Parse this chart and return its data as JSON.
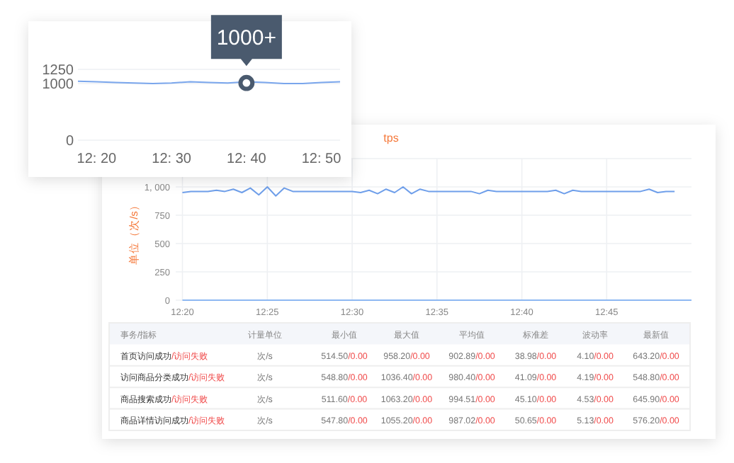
{
  "chart_data": [
    {
      "type": "line",
      "categories": [
        null,
        "12: 20",
        null,
        null,
        null,
        "12: 30",
        null,
        null,
        null,
        "12: 40",
        null,
        null,
        null,
        "12: 50",
        null
      ],
      "series": [
        {
          "color": "#7aa6ec",
          "values": [
            1040,
            1030,
            1020,
            1010,
            1000,
            1010,
            1030,
            1020,
            1010,
            1030,
            1020,
            1000,
            1000,
            1020,
            1030
          ]
        }
      ],
      "ylim": [
        0,
        1300
      ],
      "yticks": [
        0,
        1000,
        1250
      ],
      "grid": "y",
      "annotations": [
        {
          "text": "1000+",
          "x": "12: 40",
          "y": 1010
        }
      ]
    },
    {
      "type": "line",
      "title": "tps",
      "ylabel": "单位（次/s）",
      "series": [
        {
          "color": "#6f9fea",
          "x": [
            12.3333,
            12.3417,
            12.35,
            12.3583,
            12.3667,
            12.375,
            12.3833,
            12.3917,
            12.4,
            12.4083,
            12.4167,
            12.425,
            12.4333,
            12.4417,
            12.45,
            12.4583,
            12.4667,
            12.475,
            12.4833,
            12.4917,
            12.5,
            12.5083,
            12.5167,
            12.525,
            12.5333,
            12.5417,
            12.55,
            12.5583,
            12.5667,
            12.575,
            12.5833,
            12.5917,
            12.6,
            12.6083,
            12.6167,
            12.625,
            12.6333,
            12.6417,
            12.65,
            12.6583,
            12.6667,
            12.675,
            12.6833,
            12.6917,
            12.7,
            12.7083,
            12.7167,
            12.725,
            12.7333,
            12.7417,
            12.75,
            12.7583,
            12.7667,
            12.775,
            12.7833,
            12.7917,
            12.8,
            12.8083,
            12.8167
          ],
          "values": [
            950,
            960,
            960,
            960,
            970,
            960,
            980,
            950,
            990,
            930,
            1000,
            920,
            990,
            960,
            960,
            960,
            960,
            960,
            960,
            960,
            960,
            950,
            970,
            940,
            980,
            950,
            1000,
            940,
            980,
            960,
            960,
            960,
            960,
            960,
            960,
            940,
            970,
            960,
            960,
            960,
            960,
            960,
            960,
            960,
            970,
            940,
            970,
            960,
            960,
            960,
            960,
            960,
            960,
            960,
            960,
            980,
            950,
            960,
            960
          ]
        },
        {
          "color": "#8db8f2",
          "x": [
            12.3333,
            12.8333
          ],
          "values": [
            0,
            0
          ]
        }
      ],
      "xlim": [
        12.3267,
        12.8333
      ],
      "xticks": [
        {
          "value": 12.3333,
          "label": "12:20"
        },
        {
          "value": 12.4167,
          "label": "12:25"
        },
        {
          "value": 12.5,
          "label": "12:30"
        },
        {
          "value": 12.5833,
          "label": "12:35"
        },
        {
          "value": 12.6667,
          "label": "12:40"
        },
        {
          "value": 12.75,
          "label": "12:45"
        }
      ],
      "ylim": [
        0,
        1250
      ],
      "yticks": [
        0,
        250,
        500,
        750,
        {
          "value": 1000,
          "label": "1, 000"
        },
        {
          "value": 1250,
          "label": null
        }
      ],
      "grid": true
    },
    {
      "type": "other",
      "categories": [
        "事务/指标",
        "计量单位",
        "最小值",
        "最大值",
        "平均值",
        "标准差",
        "波动率",
        "最新值"
      ],
      "cell_labels": [
        [
          "首页访问成功/访问失败",
          "次/s",
          "514.50/0.00",
          "958.20/0.00",
          "902.89/0.00",
          "38.98/0.00",
          "4.10/0.00",
          "643.20/0.00"
        ],
        [
          "访问商品分类成功/访问失败",
          "次/s",
          "548.80/0.00",
          "1036.40/0.00",
          "980.40/0.00",
          "41.09/0.00",
          "4.19/0.00",
          "548.80/0.00"
        ],
        [
          "商品搜索成功/访问失败",
          "次/s",
          "511.60/0.00",
          "1063.20/0.00",
          "994.51/0.00",
          "45.10/0.00",
          "4.53/0.00",
          "645.90/0.00"
        ],
        [
          "商品详情访问成功/访问失败",
          "次/s",
          "547.80/0.00",
          "1055.20/0.00",
          "987.02/0.00",
          "50.65/0.00",
          "5.13/0.00",
          "576.20/0.00"
        ]
      ]
    }
  ]
}
